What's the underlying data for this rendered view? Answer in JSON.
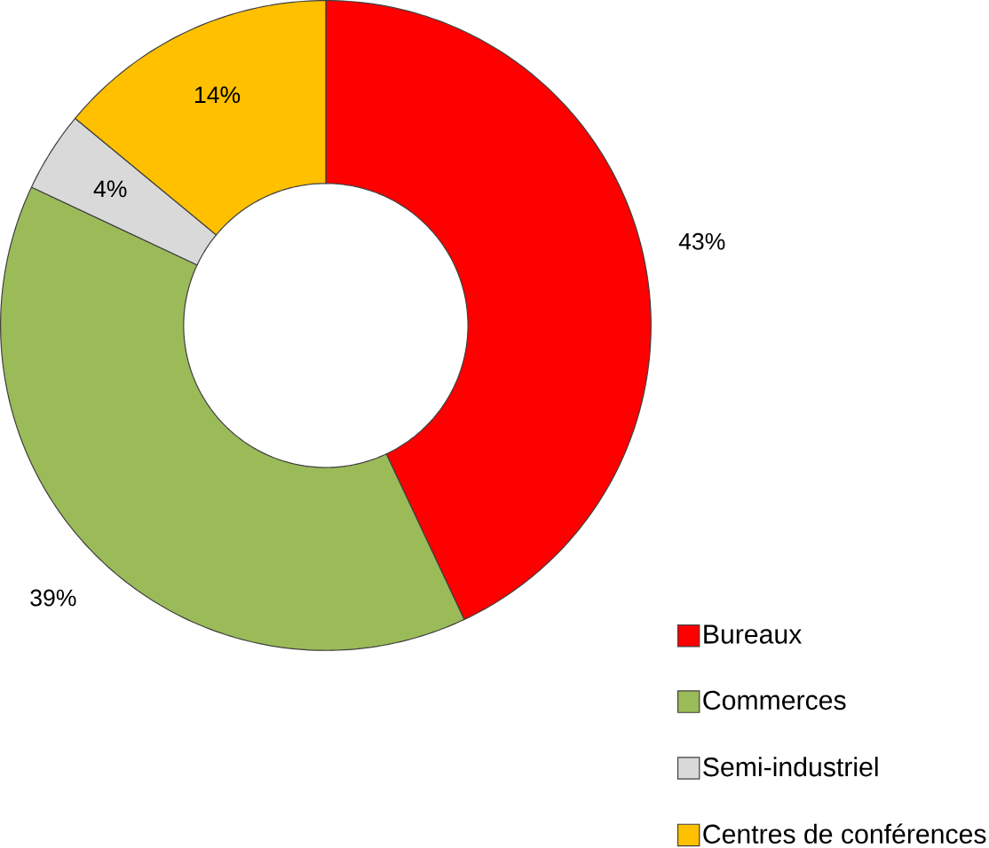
{
  "chart_data": {
    "type": "donut",
    "categories": [
      "Bureaux",
      "Commerces",
      "Semi-industriel",
      "Centres de conférences"
    ],
    "values": [
      43,
      39,
      4,
      14
    ],
    "value_labels": [
      "43%",
      "39%",
      "4%",
      "14%"
    ],
    "colors": [
      "#ff0000",
      "#9bbb59",
      "#d9d9d9",
      "#ffc000"
    ],
    "legend": "bottom right"
  }
}
